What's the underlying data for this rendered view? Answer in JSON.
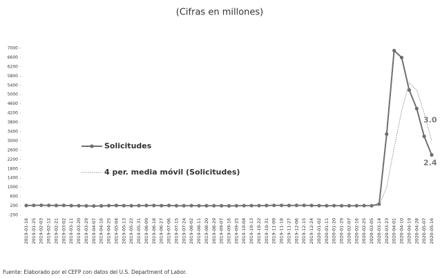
{
  "chart_data": {
    "type": "line",
    "title": "(Cifras en millones)",
    "source": "Fuente: Elaborado por el CEFP con datos del U.S. Department of Labor.",
    "categories": [
      "2019-01-16",
      "2019-01-25",
      "2019-02-03",
      "2019-02-12",
      "2019-02-21",
      "2019-03-02",
      "2019-03-11",
      "2019-03-20",
      "2019-03-29",
      "2019-04-07",
      "2019-04-16",
      "2019-04-25",
      "2019-05-04",
      "2019-05-13",
      "2019-05-22",
      "2019-05-31",
      "2019-06-09",
      "2019-06-18",
      "2019-06-27",
      "2019-07-06",
      "2019-07-15",
      "2019-07-24",
      "2019-08-02",
      "2019-08-11",
      "2019-08-20",
      "2019-08-29",
      "2019-09-07",
      "2019-09-16",
      "2019-09-25",
      "2019-10-04",
      "2019-10-13",
      "2019-10-22",
      "2019-10-31",
      "2019-11-09",
      "2019-11-18",
      "2019-11-27",
      "2019-12-06",
      "2019-12-15",
      "2019-12-24",
      "2020-01-02",
      "2020-01-11",
      "2020-01-20",
      "2020-01-29",
      "2020-02-07",
      "2020-02-16",
      "2020-02-25",
      "2020-03-05",
      "2020-03-14",
      "2020-03-23",
      "2020-04-01",
      "2020-04-10",
      "2020-04-19",
      "2020-04-28",
      "2020-05-07",
      "2020-05-16"
    ],
    "series": [
      {
        "name": "Solicitudes",
        "color": "#6e6e6e",
        "style": "solid",
        "markers": true,
        "values": [
          220,
          225,
          230,
          225,
          220,
          225,
          215,
          210,
          205,
          200,
          205,
          215,
          220,
          215,
          210,
          215,
          220,
          220,
          215,
          220,
          210,
          210,
          215,
          210,
          210,
          210,
          210,
          205,
          210,
          215,
          215,
          215,
          220,
          225,
          225,
          220,
          225,
          225,
          220,
          215,
          210,
          215,
          210,
          210,
          210,
          215,
          210,
          280,
          3300,
          6900,
          6600,
          5200,
          4400,
          3200,
          2400
        ],
        "value_labels": [
          null,
          null,
          null,
          null,
          null,
          null,
          null,
          null,
          null,
          null,
          null,
          null,
          null,
          null,
          null,
          null,
          null,
          null,
          null,
          null,
          null,
          null,
          null,
          null,
          null,
          null,
          null,
          null,
          null,
          null,
          null,
          null,
          null,
          null,
          null,
          null,
          null,
          null,
          null,
          null,
          null,
          null,
          null,
          null,
          null,
          null,
          null,
          null,
          null,
          null,
          null,
          null,
          null,
          null,
          "2.4"
        ]
      },
      {
        "name": "4 per. media móvil (Solicitudes)",
        "color": "#8a8a8a",
        "style": "dotted",
        "markers": false,
        "values": [
          220,
          222,
          225,
          226,
          225,
          225,
          222,
          220,
          215,
          210,
          208,
          208,
          210,
          213,
          215,
          215,
          215,
          218,
          219,
          219,
          216,
          214,
          214,
          214,
          211,
          210,
          210,
          209,
          209,
          210,
          211,
          214,
          216,
          219,
          221,
          223,
          224,
          224,
          223,
          221,
          218,
          215,
          213,
          212,
          211,
          212,
          211,
          230,
          1000,
          2700,
          4300,
          5500,
          5200,
          4200,
          3000
        ],
        "value_labels": [
          null,
          null,
          null,
          null,
          null,
          null,
          null,
          null,
          null,
          null,
          null,
          null,
          null,
          null,
          null,
          null,
          null,
          null,
          null,
          null,
          null,
          null,
          null,
          null,
          null,
          null,
          null,
          null,
          null,
          null,
          null,
          null,
          null,
          null,
          null,
          null,
          null,
          null,
          null,
          null,
          null,
          null,
          null,
          null,
          null,
          null,
          null,
          null,
          null,
          null,
          null,
          null,
          null,
          null,
          "3.0"
        ]
      }
    ],
    "ylim": [
      -200,
      7000
    ],
    "yticks": [
      -200,
      200,
      600,
      1000,
      1400,
      1800,
      2200,
      2600,
      3000,
      3400,
      3800,
      4200,
      4600,
      5000,
      5400,
      5800,
      6200,
      6600,
      7000
    ],
    "grid": false
  }
}
